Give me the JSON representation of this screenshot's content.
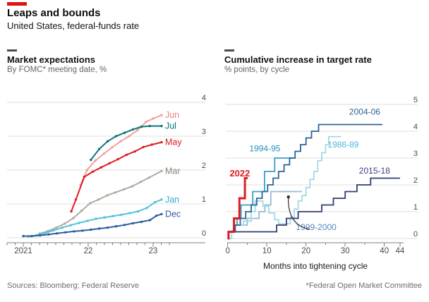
{
  "header": {
    "title": "Leaps and bounds",
    "subtitle": "United States, federal-funds rate"
  },
  "panels": [
    {
      "heading": "Market expectations",
      "subheading": "By FOMC* meeting date, %"
    },
    {
      "heading": "Cumulative increase in target rate",
      "subheading": "% points, by cycle"
    }
  ],
  "footer": {
    "sources": "Sources: Bloomberg; Federal Reserve",
    "note": "*Federal Open Market Committee"
  },
  "colors": {
    "accent_red": "#e3120b",
    "grid": "#dfdfdf",
    "axis": "#818181",
    "tick_label": "#4a4946",
    "annotation": "#3f3f3f"
  },
  "chart_data": [
    {
      "type": "line",
      "title": "Market expectations",
      "subtitle": "By FOMC* meeting date, %",
      "xlabel": "",
      "ylabel": "%",
      "xlim": [
        2020.75,
        2023.42
      ],
      "ylim": [
        0,
        4
      ],
      "grid": true,
      "y_ticks": [
        0,
        1,
        2,
        3,
        4
      ],
      "x_major_ticks": [
        {
          "value": 2021,
          "label": "2021"
        },
        {
          "value": 2022,
          "label": "22"
        },
        {
          "value": 2023,
          "label": "23"
        }
      ],
      "x_minor_tick_step": 0.125,
      "series": [
        {
          "name": "Mar",
          "color": "#b1aba1",
          "label_color": "#8d877d",
          "points": [
            [
              2021.25,
              0.12
            ],
            [
              2021.38,
              0.2
            ],
            [
              2021.51,
              0.3
            ],
            [
              2021.64,
              0.42
            ],
            [
              2021.77,
              0.58
            ],
            [
              2021.9,
              0.8
            ],
            [
              2022.03,
              1.02
            ],
            [
              2022.16,
              1.13
            ],
            [
              2022.29,
              1.25
            ],
            [
              2022.42,
              1.34
            ],
            [
              2022.55,
              1.43
            ],
            [
              2022.68,
              1.52
            ],
            [
              2022.81,
              1.65
            ],
            [
              2022.94,
              1.78
            ],
            [
              2023.13,
              1.97
            ]
          ]
        },
        {
          "name": "Jan",
          "color": "#52c3dd",
          "label_color": "#36abc9",
          "points": [
            [
              2021.08,
              0.04
            ],
            [
              2021.21,
              0.08
            ],
            [
              2021.34,
              0.14
            ],
            [
              2021.47,
              0.22
            ],
            [
              2021.6,
              0.3
            ],
            [
              2021.73,
              0.37
            ],
            [
              2021.86,
              0.44
            ],
            [
              2021.99,
              0.5
            ],
            [
              2022.12,
              0.56
            ],
            [
              2022.25,
              0.6
            ],
            [
              2022.38,
              0.64
            ],
            [
              2022.51,
              0.68
            ],
            [
              2022.64,
              0.73
            ],
            [
              2022.77,
              0.78
            ],
            [
              2022.9,
              0.88
            ],
            [
              2023.03,
              1.05
            ],
            [
              2023.13,
              1.13
            ]
          ]
        },
        {
          "name": "Dec",
          "color": "#2d5fa0",
          "label_color": "#2d5fa0",
          "points": [
            [
              2021.0,
              0.05
            ],
            [
              2021.13,
              0.05
            ],
            [
              2021.26,
              0.07
            ],
            [
              2021.39,
              0.1
            ],
            [
              2021.52,
              0.13
            ],
            [
              2021.65,
              0.16
            ],
            [
              2021.78,
              0.19
            ],
            [
              2021.91,
              0.21
            ],
            [
              2022.04,
              0.24
            ],
            [
              2022.17,
              0.27
            ],
            [
              2022.3,
              0.3
            ],
            [
              2022.43,
              0.34
            ],
            [
              2022.56,
              0.38
            ],
            [
              2022.69,
              0.43
            ],
            [
              2022.82,
              0.47
            ],
            [
              2022.95,
              0.52
            ],
            [
              2023.05,
              0.65
            ],
            [
              2023.13,
              0.7
            ]
          ]
        },
        {
          "name": "Jun",
          "color": "#f4a09b",
          "label_color": "#f08379",
          "points": [
            [
              2021.88,
              1.55
            ],
            [
              2021.98,
              2.0
            ],
            [
              2022.11,
              2.28
            ],
            [
              2022.24,
              2.48
            ],
            [
              2022.37,
              2.67
            ],
            [
              2022.5,
              2.85
            ],
            [
              2022.63,
              3.0
            ],
            [
              2022.76,
              3.18
            ],
            [
              2022.89,
              3.42
            ],
            [
              2023.0,
              3.52
            ],
            [
              2023.13,
              3.62
            ]
          ]
        },
        {
          "name": "Jul",
          "color": "#0e7577",
          "label_color": "#0e7577",
          "points": [
            [
              2022.04,
              2.3
            ],
            [
              2022.17,
              2.62
            ],
            [
              2022.3,
              2.85
            ],
            [
              2022.43,
              3.0
            ],
            [
              2022.56,
              3.1
            ],
            [
              2022.69,
              3.2
            ],
            [
              2022.82,
              3.28
            ],
            [
              2022.95,
              3.3
            ],
            [
              2023.13,
              3.3
            ]
          ]
        },
        {
          "name": "May",
          "color": "#dc1e23",
          "label_color": "#dc1e23",
          "points": [
            [
              2021.74,
              0.78
            ],
            [
              2021.81,
              1.13
            ],
            [
              2021.94,
              1.8
            ],
            [
              2022.07,
              1.95
            ],
            [
              2022.2,
              2.08
            ],
            [
              2022.33,
              2.2
            ],
            [
              2022.46,
              2.32
            ],
            [
              2022.59,
              2.45
            ],
            [
              2022.72,
              2.55
            ],
            [
              2022.85,
              2.68
            ],
            [
              2022.98,
              2.75
            ],
            [
              2023.13,
              2.82
            ]
          ]
        }
      ]
    },
    {
      "type": "step-line",
      "title": "Cumulative increase in target rate",
      "subtitle": "% points, by cycle",
      "xlabel": "Months into tightening cycle",
      "xlim": [
        0,
        45
      ],
      "ylim": [
        0,
        5
      ],
      "grid": true,
      "y_ticks": [
        0,
        1,
        2,
        3,
        4,
        5
      ],
      "x_major_ticks": [
        {
          "value": 0,
          "label": "0"
        },
        {
          "value": 10,
          "label": "10"
        },
        {
          "value": 20,
          "label": "20"
        },
        {
          "value": 30,
          "label": "30"
        },
        {
          "value": 40,
          "label": "40"
        },
        {
          "value": 44,
          "label": "44"
        }
      ],
      "x_minor_tick_step": 5,
      "series": [
        {
          "name": "1999-2000",
          "color": "#94bad6",
          "label": {
            "text": "1999-2000",
            "x": 22.6,
            "y": 0.42,
            "color": "#5585bb"
          },
          "hikes": [
            [
              0.2,
              0.25
            ],
            [
              2,
              0.5
            ],
            [
              5,
              0.75
            ],
            [
              8,
              1.0
            ],
            [
              9.5,
              1.25
            ],
            [
              11,
              1.75
            ]
          ],
          "end": 19
        },
        {
          "name": "1986-89",
          "color": "#a3d9e8",
          "label": {
            "text": "1986-89",
            "x": 29.5,
            "y": 3.5,
            "color": "#49b8d8"
          },
          "hikes": [
            [
              1,
              0.3
            ],
            [
              2,
              0.5
            ],
            [
              4,
              0.65
            ],
            [
              6,
              1.0
            ],
            [
              7,
              1.4
            ],
            [
              9,
              1.2
            ],
            [
              10.5,
              0.95
            ],
            [
              12,
              0.7
            ],
            [
              13,
              0.55
            ],
            [
              16,
              0.8
            ],
            [
              17,
              1.1
            ],
            [
              18,
              1.4
            ],
            [
              19,
              1.6
            ],
            [
              20,
              1.9
            ],
            [
              21,
              2.2
            ],
            [
              22,
              2.5
            ],
            [
              23,
              2.9
            ],
            [
              24,
              3.2
            ],
            [
              25,
              3.5
            ],
            [
              25.8,
              3.8
            ]
          ],
          "end": 29
        },
        {
          "name": "1994-95",
          "color": "#35a1c6",
          "label": {
            "text": "1994-95",
            "x": 9.5,
            "y": 3.35,
            "color": "#2492bb"
          },
          "hikes": [
            [
              0.2,
              0.25
            ],
            [
              1.5,
              0.5
            ],
            [
              2.4,
              0.75
            ],
            [
              3.4,
              1.25
            ],
            [
              6.4,
              1.75
            ],
            [
              9.4,
              2.5
            ],
            [
              12,
              3.0
            ]
          ],
          "end": 17
        },
        {
          "name": "2004-06",
          "color": "#2c6395",
          "label": {
            "text": "2004-06",
            "x": 35,
            "y": 4.72,
            "color": "#2c6395"
          },
          "hikes": [
            [
              0.3,
              0.25
            ],
            [
              1.9,
              0.5
            ],
            [
              3.2,
              0.75
            ],
            [
              4.6,
              1.0
            ],
            [
              6,
              1.25
            ],
            [
              7.4,
              1.5
            ],
            [
              8.8,
              1.75
            ],
            [
              10.2,
              2.0
            ],
            [
              11.6,
              2.25
            ],
            [
              13,
              2.5
            ],
            [
              14.4,
              2.75
            ],
            [
              15.8,
              3.0
            ],
            [
              17.2,
              3.25
            ],
            [
              18.6,
              3.5
            ],
            [
              20,
              3.75
            ],
            [
              21.4,
              4.0
            ],
            [
              23.2,
              4.25
            ]
          ],
          "end": 39.5
        },
        {
          "name": "2015-18",
          "color": "#323c72",
          "label": {
            "text": "2015-18",
            "x": 37.5,
            "y": 2.52,
            "color": "#3a4180"
          },
          "hikes": [
            [
              0.2,
              0.25
            ],
            [
              12.5,
              0.5
            ],
            [
              15,
              0.75
            ],
            [
              18,
              1.0
            ],
            [
              24,
              1.25
            ],
            [
              27,
              1.5
            ],
            [
              30,
              1.75
            ],
            [
              33,
              2.0
            ],
            [
              36.5,
              2.25
            ]
          ],
          "end": 44
        },
        {
          "name": "2022",
          "color": "#dc1e23",
          "emphasis": true,
          "label": {
            "text": "2022",
            "x": 3.1,
            "y": 2.42,
            "color": "#dc1e23",
            "bold": true
          },
          "hikes": [
            [
              0.2,
              0.25
            ],
            [
              1.6,
              0.75
            ],
            [
              3,
              1.5
            ],
            [
              4.4,
              2.25
            ]
          ],
          "end": 5.1
        }
      ],
      "annotation": {
        "arrow_from": [
          21.0,
          0.34
        ],
        "arrow_ctrl": [
          15.2,
          0.5
        ],
        "arrow_to": [
          15.5,
          1.55
        ]
      }
    }
  ]
}
